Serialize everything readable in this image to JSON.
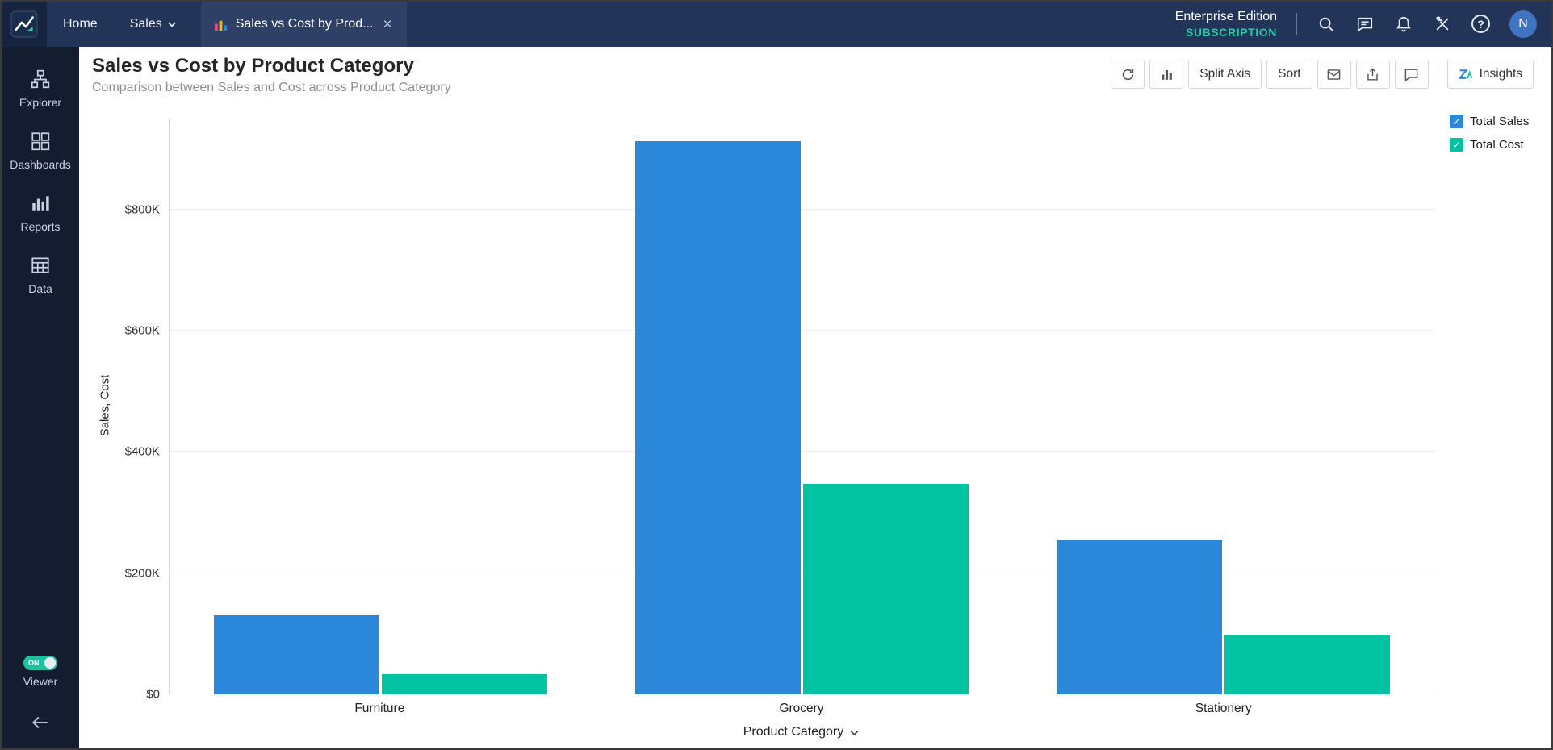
{
  "topbar": {
    "home_label": "Home",
    "sales_menu_label": "Sales",
    "tab": {
      "title": "Sales vs Cost by Prod...",
      "close_glyph": "×"
    },
    "edition_label": "Enterprise Edition",
    "subscription_label": "SUBSCRIPTION",
    "avatar_initial": "N"
  },
  "sidebar": {
    "items": [
      {
        "label": "Explorer"
      },
      {
        "label": "Dashboards"
      },
      {
        "label": "Reports"
      },
      {
        "label": "Data"
      }
    ],
    "viewer_toggle": {
      "state_label": "ON",
      "label": "Viewer"
    }
  },
  "header": {
    "title": "Sales vs Cost by Product Category",
    "subtitle": "Comparison between Sales and Cost across Product Category"
  },
  "toolbar": {
    "split_axis_label": "Split Axis",
    "sort_label": "Sort",
    "insights_label": "Insights"
  },
  "icons": {
    "check_glyph": "✓",
    "help_glyph": "?"
  },
  "colors": {
    "sales_blue": "#2b87d9",
    "cost_teal": "#01c3a2",
    "subscription_teal": "#2ec7a7",
    "topbar_bg": "#223457",
    "sidebar_bg": "#141c2f"
  },
  "legend": [
    {
      "label": "Total Sales",
      "color": "#2b87d9"
    },
    {
      "label": "Total Cost",
      "color": "#01c3a2"
    }
  ],
  "chart_data": {
    "type": "bar",
    "title": "Sales vs Cost by Product Category",
    "categories": [
      "Furniture",
      "Grocery",
      "Stationery"
    ],
    "series": [
      {
        "name": "Total Sales",
        "color": "#2b87d9",
        "values": [
          131000,
          913000,
          254000
        ]
      },
      {
        "name": "Total Cost",
        "color": "#01c3a2",
        "values": [
          33000,
          347000,
          97000
        ]
      }
    ],
    "xlabel": "Product Category",
    "ylabel": "Sales, Cost",
    "ylim": [
      0,
      950000
    ],
    "yticks": [
      {
        "value": 0,
        "label": "$0"
      },
      {
        "value": 200000,
        "label": "$200K"
      },
      {
        "value": 400000,
        "label": "$400K"
      },
      {
        "value": 600000,
        "label": "$600K"
      },
      {
        "value": 800000,
        "label": "$800K"
      }
    ],
    "grid": true,
    "legend_position": "top-right"
  }
}
